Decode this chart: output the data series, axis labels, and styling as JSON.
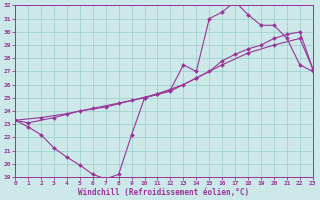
{
  "xlabel": "Windchill (Refroidissement éolien,°C)",
  "bg_color": "#cce8e8",
  "line_color": "#993399",
  "grid_color": "#99cccc",
  "xlim": [
    0,
    23
  ],
  "ylim": [
    19,
    32
  ],
  "xticks": [
    0,
    1,
    2,
    3,
    4,
    5,
    6,
    7,
    8,
    9,
    10,
    11,
    12,
    13,
    14,
    15,
    16,
    17,
    18,
    19,
    20,
    21,
    22,
    23
  ],
  "yticks": [
    19,
    20,
    21,
    22,
    23,
    24,
    25,
    26,
    27,
    28,
    29,
    30,
    31,
    32
  ],
  "line1_x": [
    0,
    1,
    2,
    3,
    4,
    5,
    6,
    7,
    8,
    9,
    10,
    11,
    12,
    13,
    14,
    15,
    16,
    17,
    18,
    19,
    20,
    21,
    22,
    23
  ],
  "line1_y": [
    23.3,
    22.8,
    22.2,
    21.2,
    20.5,
    19.9,
    19.2,
    18.85,
    19.2,
    22.2,
    25.0,
    25.3,
    25.6,
    27.5,
    27.0,
    31.0,
    31.5,
    32.3,
    31.3,
    30.5,
    30.5,
    29.5,
    27.5,
    27.0
  ],
  "line2_x": [
    0,
    1,
    3,
    5,
    7,
    9,
    11,
    13,
    14,
    15,
    16,
    17,
    18,
    19,
    20,
    21,
    22,
    23
  ],
  "line2_y": [
    23.3,
    23.1,
    23.5,
    24.0,
    24.3,
    24.8,
    25.3,
    26.0,
    26.5,
    27.0,
    27.8,
    28.3,
    28.7,
    29.0,
    29.5,
    29.8,
    30.0,
    27.2
  ],
  "line3_x": [
    0,
    2,
    4,
    6,
    8,
    10,
    12,
    14,
    16,
    18,
    20,
    22,
    23
  ],
  "line3_y": [
    23.3,
    23.5,
    23.8,
    24.2,
    24.6,
    25.0,
    25.5,
    26.5,
    27.5,
    28.4,
    29.0,
    29.5,
    27.2
  ]
}
